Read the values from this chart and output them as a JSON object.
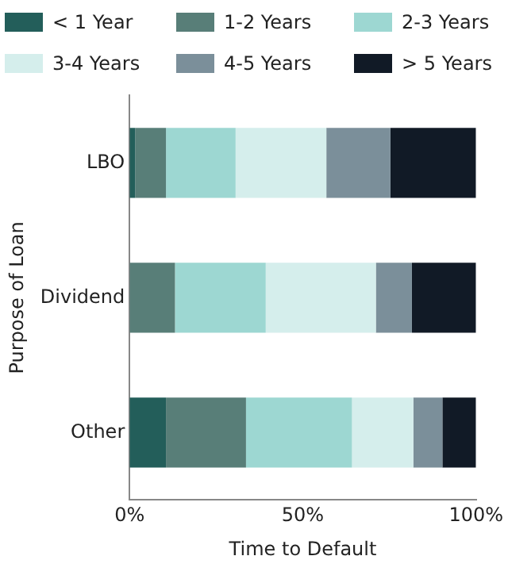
{
  "chart_data": {
    "type": "bar",
    "orientation": "horizontal",
    "stacked": true,
    "xlabel": "Time to Default",
    "ylabel": "Purpose of Loan",
    "categories": [
      "LBO",
      "Dividend",
      "Other"
    ],
    "series": [
      {
        "name": "< 1 Year",
        "color": "#235e5a",
        "values": [
          1.6,
          0,
          10.5
        ]
      },
      {
        "name": "1-2 Years",
        "color": "#587e78",
        "values": [
          8.9,
          13.1,
          23.1
        ]
      },
      {
        "name": "2-3 Years",
        "color": "#9dd7d2",
        "values": [
          20.1,
          26.2,
          30.6
        ]
      },
      {
        "name": "3-4 Years",
        "color": "#d5eeec",
        "values": [
          26.2,
          31.8,
          17.7
        ]
      },
      {
        "name": "4-5 Years",
        "color": "#7b8f9a",
        "values": [
          18.5,
          10.4,
          8.4
        ]
      },
      {
        "name": "> 5 Years",
        "color": "#111a26",
        "values": [
          24.7,
          18.5,
          9.7
        ]
      }
    ],
    "xlim": [
      0,
      100
    ],
    "xticks": [
      {
        "value": 0,
        "label": "0%"
      },
      {
        "value": 50,
        "label": "50%"
      },
      {
        "value": 100,
        "label": "100%"
      }
    ],
    "grid": false,
    "legend": "top"
  }
}
